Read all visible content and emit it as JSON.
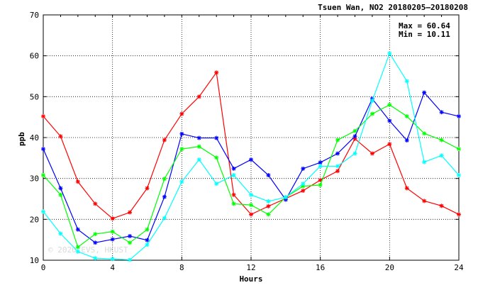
{
  "chart_data": {
    "type": "line",
    "title": "Tsuen Wan, NO2 20180205—20180208",
    "xlabel": "Hours",
    "ylabel": "ppb",
    "xlim": [
      0,
      24
    ],
    "ylim": [
      10,
      70
    ],
    "xticks": [
      0,
      4,
      8,
      12,
      16,
      20,
      24
    ],
    "yticks": [
      10,
      20,
      30,
      40,
      50,
      60,
      70
    ],
    "grid": true,
    "stats": {
      "max": "Max = 60.64",
      "min": "Min = 10.11"
    },
    "watermark": "© 2020 EVS, HKUST",
    "series": [
      {
        "color": "#ff0000",
        "values": [
          45.2,
          40.3,
          29.2,
          23.8,
          20.2,
          21.7,
          27.6,
          39.4,
          45.8,
          50.0,
          55.9,
          26.0,
          21.2,
          23.2,
          25.1,
          27.0,
          29.6,
          31.8,
          39.7,
          36.1,
          38.4,
          27.6,
          24.5,
          23.3,
          21.2
        ]
      },
      {
        "color": "#0000ff",
        "values": [
          37.2,
          27.6,
          17.5,
          14.3,
          15.1,
          15.9,
          14.9,
          25.5,
          40.9,
          39.9,
          39.9,
          32.4,
          34.6,
          30.8,
          24.8,
          32.4,
          33.9,
          36.1,
          40.3,
          49.5,
          44.1,
          39.3,
          51.0,
          46.2,
          45.2
        ]
      },
      {
        "color": "#00ff00",
        "values": [
          30.8,
          26.0,
          13.2,
          16.4,
          17.0,
          14.3,
          17.5,
          29.9,
          37.2,
          37.8,
          35.1,
          23.8,
          23.5,
          21.2,
          25.4,
          28.1,
          28.4,
          39.4,
          41.6,
          45.8,
          48.0,
          45.2,
          41.0,
          39.4,
          37.2
        ]
      },
      {
        "color": "#00ffff",
        "values": [
          21.9,
          16.5,
          12.1,
          10.5,
          10.3,
          10.1,
          13.8,
          20.3,
          29.2,
          34.6,
          28.7,
          30.8,
          26.0,
          24.4,
          25.4,
          28.7,
          33.0,
          33.0,
          36.1,
          49.0,
          60.6,
          53.8,
          34.0,
          35.6,
          30.8
        ]
      }
    ]
  }
}
